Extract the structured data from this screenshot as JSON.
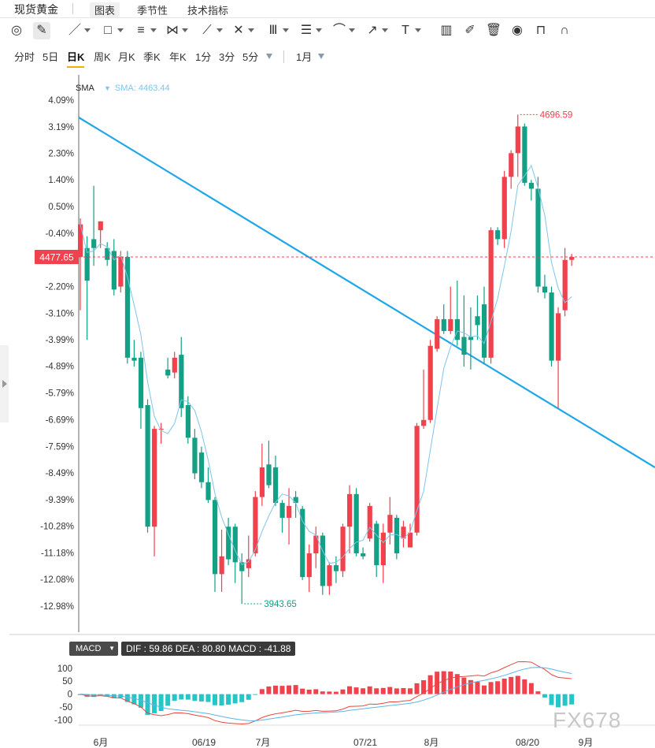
{
  "header": {
    "symbol": "现货黄金",
    "tabs": [
      {
        "label": "图表",
        "active": true
      },
      {
        "label": "季节性",
        "active": false
      },
      {
        "label": "技术指标",
        "active": false
      }
    ]
  },
  "toolbar": {
    "tools": [
      "cursor-icon",
      "pencil-icon",
      "line-icon",
      "rectangle-icon",
      "parallel-lines-icon",
      "pattern-icon",
      "measure-icon",
      "fib-icon",
      "pitchfork-icon",
      "channel-icon",
      "brush-icon",
      "arrow-icon",
      "text-icon",
      "chart-icon",
      "edit-icon",
      "trash-icon",
      "eye-icon",
      "lock-icon",
      "magnet-icon"
    ],
    "text_tool": "T"
  },
  "periods": {
    "items": [
      "分时",
      "5日",
      "日K",
      "周K",
      "月K",
      "季K",
      "年K",
      "1分",
      "3分",
      "5分"
    ],
    "active": "日K",
    "range": "1月"
  },
  "legend": {
    "sma_label": "SMA",
    "sma_value": "SMA: 4463.44"
  },
  "macd_legend": {
    "indicator": "MACD",
    "values": "DIF : 59.86  DEA : 80.80  MACD : -41.88"
  },
  "watermark": "FX678",
  "colors": {
    "up": "#f0414c",
    "down": "#14a085",
    "sma": "#7fc4e8",
    "trend": "#1fa6e8",
    "dif": "#e8483e",
    "dea": "#5bb5e8"
  },
  "chart_data": [
    {
      "type": "candlestick",
      "y_axis_percent_ticks": [
        "4.09%",
        "3.19%",
        "2.30%",
        "1.40%",
        "0.50%",
        "-0.40%",
        "-2.20%",
        "-3.10%",
        "-3.99%",
        "-4.89%",
        "-5.79%",
        "-6.69%",
        "-7.59%",
        "-8.49%",
        "-9.39%",
        "-10.28%",
        "-11.18%",
        "-12.08%",
        "-12.98%"
      ],
      "ylim_pct": [
        -12.98,
        4.09
      ],
      "current_price": "4477.65",
      "annotations": {
        "high": "4696.59",
        "low": "3943.65"
      },
      "x_ticks": [
        "6月",
        "06/19",
        "7月",
        "07/21",
        "8月",
        "08/20",
        "9月"
      ],
      "series": [
        {
          "name": "SMA",
          "type": "line"
        }
      ],
      "candles_pct": [
        {
          "o": -1.2,
          "c": -0.1,
          "h": 0.1,
          "l": -3.0
        },
        {
          "o": -0.9,
          "c": -2.0,
          "h": -0.5,
          "l": -4.0
        },
        {
          "o": -0.6,
          "c": -0.9,
          "h": 1.2,
          "l": -1.5
        },
        {
          "o": -0.3,
          "c": -0.0,
          "h": -0.0,
          "l": -0.9
        },
        {
          "o": -0.9,
          "c": -1.3,
          "h": -0.7,
          "l": -1.5
        },
        {
          "o": -1.0,
          "c": -2.3,
          "h": -0.6,
          "l": -2.5
        },
        {
          "o": -2.2,
          "c": -1.2,
          "h": -1.0,
          "l": -2.4
        },
        {
          "o": -1.2,
          "c": -4.6,
          "h": -1.0,
          "l": -4.8
        },
        {
          "o": -4.6,
          "c": -4.7,
          "h": -4.0,
          "l": -4.9
        },
        {
          "o": -4.6,
          "c": -6.3,
          "h": -4.4,
          "l": -7.0
        },
        {
          "o": -6.2,
          "c": -10.3,
          "h": -6.0,
          "l": -10.5
        },
        {
          "o": -10.3,
          "c": -7.0,
          "h": -6.9,
          "l": -11.3
        },
        {
          "o": -7.0,
          "c": -7.0,
          "h": -6.8,
          "l": -7.5
        },
        {
          "o": -5.0,
          "c": -5.2,
          "h": -4.6,
          "l": -5.3
        },
        {
          "o": -5.1,
          "c": -4.6,
          "h": -4.4,
          "l": -5.3
        },
        {
          "o": -4.5,
          "c": -6.3,
          "h": -3.9,
          "l": -6.6
        },
        {
          "o": -6.2,
          "c": -7.3,
          "h": -5.9,
          "l": -7.5
        },
        {
          "o": -7.3,
          "c": -8.5,
          "h": -7.0,
          "l": -8.7
        },
        {
          "o": -7.8,
          "c": -8.8,
          "h": -7.6,
          "l": -9.0
        },
        {
          "o": -8.8,
          "c": -9.4,
          "h": -8.3,
          "l": -9.5
        },
        {
          "o": -9.4,
          "c": -11.9,
          "h": -9.3,
          "l": -12.5
        },
        {
          "o": -11.9,
          "c": -11.3,
          "h": -10.4,
          "l": -12.5
        },
        {
          "o": -10.3,
          "c": -11.4,
          "h": -10.0,
          "l": -11.6
        },
        {
          "o": -10.3,
          "c": -11.5,
          "h": -10.2,
          "l": -12.2
        },
        {
          "o": -11.5,
          "c": -11.8,
          "h": -11.2,
          "l": -12.9
        },
        {
          "o": -11.7,
          "c": -11.4,
          "h": -10.6,
          "l": -12.0
        },
        {
          "o": -11.2,
          "c": -9.3,
          "h": -9.1,
          "l": -11.3
        },
        {
          "o": -9.3,
          "c": -8.3,
          "h": -7.5,
          "l": -9.6
        },
        {
          "o": -8.2,
          "c": -8.9,
          "h": -7.4,
          "l": -9.0
        },
        {
          "o": -8.3,
          "c": -9.5,
          "h": -7.9,
          "l": -9.6
        },
        {
          "o": -9.5,
          "c": -10.0,
          "h": -9.4,
          "l": -10.5
        },
        {
          "o": -10.0,
          "c": -9.6,
          "h": -9.0,
          "l": -10.9
        },
        {
          "o": -9.3,
          "c": -9.5,
          "h": -9.1,
          "l": -10.0
        },
        {
          "o": -9.7,
          "c": -12.0,
          "h": -9.6,
          "l": -12.1
        },
        {
          "o": -12.0,
          "c": -11.2,
          "h": -10.9,
          "l": -12.5
        },
        {
          "o": -11.2,
          "c": -10.6,
          "h": -10.3,
          "l": -11.7
        },
        {
          "o": -10.6,
          "c": -12.3,
          "h": -10.5,
          "l": -12.6
        },
        {
          "o": -12.3,
          "c": -11.6,
          "h": -11.5,
          "l": -12.6
        },
        {
          "o": -11.6,
          "c": -11.8,
          "h": -11.3,
          "l": -12.2
        },
        {
          "o": -11.8,
          "c": -10.3,
          "h": -10.2,
          "l": -12.0
        },
        {
          "o": -10.3,
          "c": -9.2,
          "h": -8.9,
          "l": -11.2
        },
        {
          "o": -9.2,
          "c": -11.2,
          "h": -9.0,
          "l": -11.3
        },
        {
          "o": -11.2,
          "c": -11.3,
          "h": -11.0,
          "l": -11.4
        },
        {
          "o": -10.7,
          "c": -9.6,
          "h": -9.5,
          "l": -10.8
        },
        {
          "o": -10.2,
          "c": -11.6,
          "h": -10.1,
          "l": -12.0
        },
        {
          "o": -11.6,
          "c": -10.5,
          "h": -10.2,
          "l": -12.2
        },
        {
          "o": -10.5,
          "c": -9.9,
          "h": -9.3,
          "l": -10.9
        },
        {
          "o": -10.0,
          "c": -11.2,
          "h": -9.9,
          "l": -11.4
        },
        {
          "o": -10.7,
          "c": -10.3,
          "h": -10.1,
          "l": -11.0
        },
        {
          "o": -11.0,
          "c": -10.5,
          "h": -10.2,
          "l": -11.0
        },
        {
          "o": -10.5,
          "c": -6.9,
          "h": -6.8,
          "l": -10.6
        },
        {
          "o": -6.9,
          "c": -6.7,
          "h": -5.0,
          "l": -7.0
        },
        {
          "o": -6.7,
          "c": -4.2,
          "h": -4.0,
          "l": -6.8
        },
        {
          "o": -4.3,
          "c": -3.3,
          "h": -3.2,
          "l": -4.4
        },
        {
          "o": -3.3,
          "c": -3.7,
          "h": -2.8,
          "l": -3.8
        },
        {
          "o": -3.7,
          "c": -3.3,
          "h": -2.2,
          "l": -3.8
        },
        {
          "o": -3.3,
          "c": -4.0,
          "h": -2.0,
          "l": -4.2
        },
        {
          "o": -3.9,
          "c": -4.5,
          "h": -2.5,
          "l": -4.9
        },
        {
          "o": -3.9,
          "c": -4.0,
          "h": -2.9,
          "l": -5.0
        },
        {
          "o": -3.2,
          "c": -3.5,
          "h": -2.5,
          "l": -4.0
        },
        {
          "o": -2.8,
          "c": -4.6,
          "h": -2.2,
          "l": -4.8
        },
        {
          "o": -4.6,
          "c": -0.3,
          "h": -0.2,
          "l": -4.8
        },
        {
          "o": -0.3,
          "c": -0.6,
          "h": -0.2,
          "l": -0.8
        },
        {
          "o": -0.6,
          "c": 1.5,
          "h": 1.7,
          "l": -0.9
        },
        {
          "o": 1.5,
          "c": 2.3,
          "h": 2.4,
          "l": 1.1
        },
        {
          "o": 2.3,
          "c": 3.2,
          "h": 3.6,
          "l": 1.5
        },
        {
          "o": 3.2,
          "c": 1.3,
          "h": 3.3,
          "l": 1.2
        },
        {
          "o": 1.3,
          "c": 1.1,
          "h": 1.4,
          "l": 0.7
        },
        {
          "o": 1.1,
          "c": -2.2,
          "h": 1.5,
          "l": -2.4
        },
        {
          "o": -2.2,
          "c": -2.4,
          "h": -1.8,
          "l": -2.6
        },
        {
          "o": -2.4,
          "c": -4.7,
          "h": -2.2,
          "l": -4.9
        },
        {
          "o": -4.7,
          "c": -3.1,
          "h": -2.9,
          "l": -6.3
        },
        {
          "o": -3.0,
          "c": -1.3,
          "h": -0.9,
          "l": -3.2
        },
        {
          "o": -1.3,
          "c": -1.2,
          "h": -1.1,
          "l": -1.5
        }
      ]
    },
    {
      "type": "macd",
      "y_ticks": [
        "100",
        "50",
        "0",
        "-50",
        "-100"
      ],
      "ylim": [
        -120,
        130
      ],
      "dif": 59.86,
      "dea": 80.8,
      "macd": -41.88,
      "series": [
        {
          "name": "DIF"
        },
        {
          "name": "DEA"
        },
        {
          "name": "MACD"
        }
      ]
    }
  ]
}
